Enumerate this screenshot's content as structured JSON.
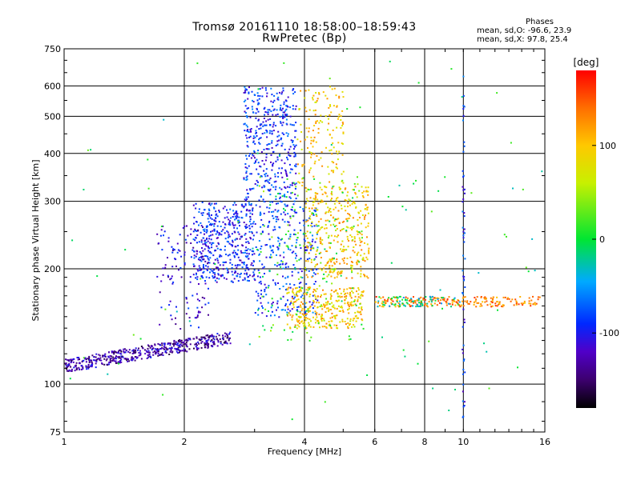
{
  "chart_data": {
    "type": "scatter",
    "title": "Tromsø 20161110 18:58:00–18:59:43",
    "subtitle": "RwPretec (Bp)",
    "xlabel": "Frequency [MHz]",
    "ylabel": "Stationary phase Virtual Height [km]",
    "x_scale": "log",
    "y_scale": "log",
    "xlim": [
      1,
      16
    ],
    "ylim": [
      75,
      750
    ],
    "x_ticks": [
      1,
      2,
      4,
      6,
      8,
      10,
      16
    ],
    "x_tick_labels": [
      "1",
      "2",
      "4",
      "6",
      "8",
      "10",
      "16"
    ],
    "y_ticks": [
      75,
      100,
      200,
      300,
      400,
      500,
      600,
      750
    ],
    "y_tick_labels": [
      "75",
      "100",
      "200",
      "300",
      "400",
      "500",
      "600",
      "750"
    ],
    "grid": true,
    "colorbar": {
      "label": "[deg]",
      "range": [
        -180,
        180
      ],
      "ticks": [
        -100,
        0,
        100
      ],
      "tick_labels": [
        "-100",
        "0",
        "100"
      ]
    },
    "stats": {
      "heading": "Phases",
      "line1": "mean, sd,O: -96.6, 23.9",
      "line2": "mean, sd,X:  97.8, 25.4"
    },
    "clusters": [
      {
        "name": "E-layer low trace",
        "x": [
          1.0,
          2.6
        ],
        "y": [
          112,
          133
        ],
        "phase": -130,
        "n": 520
      },
      {
        "name": "O-mode lower branch",
        "x": [
          2.1,
          3.0
        ],
        "y": [
          185,
          300
        ],
        "phase": -95,
        "n": 480
      },
      {
        "name": "O-mode upper",
        "x": [
          2.8,
          3.8
        ],
        "y": [
          300,
          600
        ],
        "phase": -90,
        "n": 420
      },
      {
        "name": "Mid band O",
        "x": [
          3.0,
          4.3
        ],
        "y": [
          150,
          300
        ],
        "phase": -85,
        "n": 300
      },
      {
        "name": "Transition O",
        "x": [
          1.7,
          2.3
        ],
        "y": [
          140,
          260
        ],
        "phase": -110,
        "n": 120
      },
      {
        "name": "X-mode band low",
        "x": [
          3.6,
          5.6
        ],
        "y": [
          140,
          180
        ],
        "phase": 100,
        "n": 320
      },
      {
        "name": "X-mode band high",
        "x": [
          4.0,
          5.8
        ],
        "y": [
          190,
          330
        ],
        "phase": 100,
        "n": 360
      },
      {
        "name": "X-mode upper",
        "x": [
          3.8,
          5.0
        ],
        "y": [
          330,
          600
        ],
        "phase": 95,
        "n": 150
      },
      {
        "name": "Mixed",
        "x": [
          3.0,
          5.6
        ],
        "y": [
          130,
          350
        ],
        "phase": 20,
        "n": 160
      },
      {
        "name": "Es horizontal",
        "x": [
          6.0,
          15.5
        ],
        "y": [
          160,
          170
        ],
        "phase": 130,
        "n": 220
      },
      {
        "name": "Es horizontal blue",
        "x": [
          6.0,
          9.8
        ],
        "y": [
          160,
          170
        ],
        "phase": -20,
        "n": 70
      },
      {
        "name": "Vertical line 10 MHz",
        "x": [
          9.9,
          10.05
        ],
        "y": [
          80,
          640
        ],
        "phase": -90,
        "n": 60
      },
      {
        "name": "Sparse",
        "x": [
          1.0,
          16.0
        ],
        "y": [
          80,
          700
        ],
        "phase": 0,
        "n": 90
      }
    ]
  }
}
